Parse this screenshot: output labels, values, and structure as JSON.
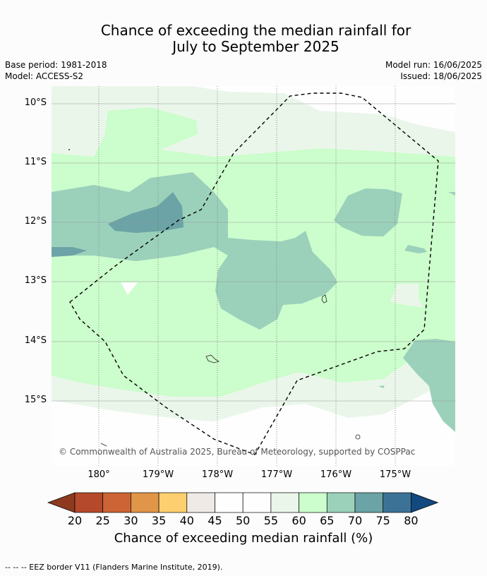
{
  "title_line1": "Chance of exceeding the median rainfall for",
  "title_line2": "July to September 2025",
  "meta": {
    "base_period": "Base period: 1981-2018",
    "model": "Model: ACCESS-S2",
    "model_run": "Model run: 16/06/2025",
    "issued": "Issued: 18/06/2025"
  },
  "lat_labels": [
    "10°S",
    "11°S",
    "12°S",
    "13°S",
    "14°S",
    "15°S"
  ],
  "lon_labels": [
    "180°",
    "179°W",
    "178°W",
    "177°W",
    "176°W",
    "175°W"
  ],
  "copyright": "© Commonwealth of Australia 2025, Bureau of Meteorology, supported by COSPPac",
  "colorbar": {
    "tick_labels": [
      "20",
      "25",
      "30",
      "35",
      "40",
      "45",
      "50",
      "55",
      "60",
      "65",
      "70",
      "75",
      "80"
    ],
    "colors": [
      "#8d3a1f",
      "#b5492b",
      "#cc6435",
      "#e09549",
      "#fdcf6e",
      "#efeae6",
      "#fdfefd",
      "#fdfefd",
      "#ebf6eb",
      "#ccfdcc",
      "#9bd1bb",
      "#6ba3a6",
      "#3d7297",
      "#12497f"
    ],
    "title": "Chance of exceeding median rainfall (%)"
  },
  "footnote": "--  --  -- EEZ border V11 (Flanders Marine Institute, 2019)."
}
